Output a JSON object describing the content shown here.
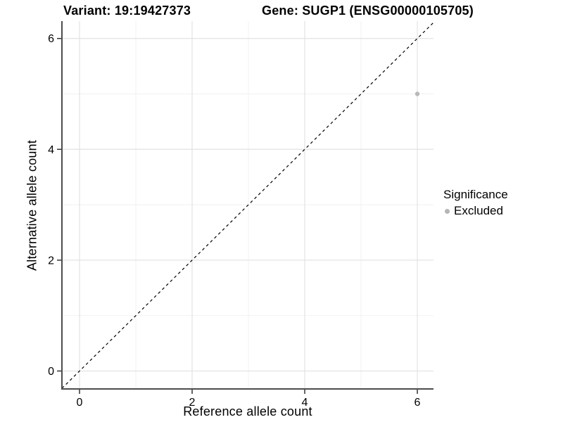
{
  "chart_data": {
    "type": "scatter",
    "title_left": "Variant: 19:19427373",
    "title_right": "Gene: SUGP1 (ENSG00000105705)",
    "xlabel": "Reference allele count",
    "ylabel": "Alternative allele count",
    "xlim": [
      -0.31,
      6.29
    ],
    "ylim": [
      -0.32,
      6.31
    ],
    "x_ticks": [
      0,
      2,
      4,
      6
    ],
    "y_ticks": [
      0,
      2,
      4,
      6
    ],
    "grid": {
      "major": [
        0,
        2,
        4,
        6
      ],
      "minor": [
        1,
        3,
        5
      ],
      "visible": true
    },
    "series": [
      {
        "name": "Excluded",
        "color": "#b9b9b9",
        "points": [
          {
            "x": 6,
            "y": 5
          }
        ]
      }
    ],
    "reference_line": {
      "type": "identity",
      "slope": 1,
      "intercept": 0,
      "style": "dashed",
      "color": "#000000"
    },
    "legend": {
      "position": "right",
      "title": "Significance",
      "entries": [
        {
          "label": "Excluded",
          "color": "#b5b5b5"
        }
      ]
    },
    "colors": {
      "background": "#ffffff",
      "grid_major": "#e4e4e4",
      "grid_minor": "#f1f1f1",
      "axis_line": "#4d4d4d",
      "tick_mark": "#333333",
      "text": "#000000"
    }
  }
}
